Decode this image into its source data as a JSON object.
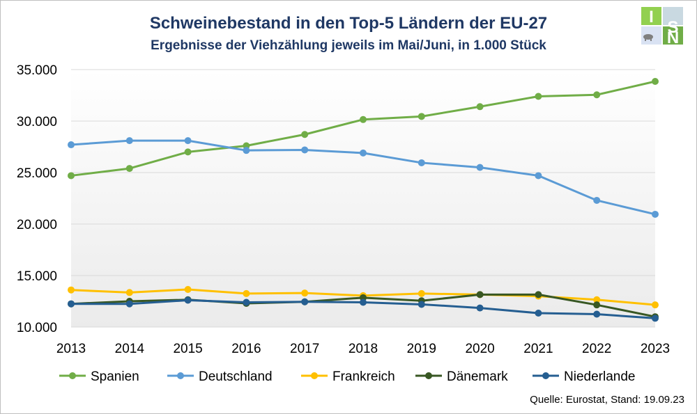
{
  "chart_data": {
    "type": "line",
    "title": "Schweinebestand in den Top-5 Ländern der EU-27",
    "subtitle": "Ergebnisse der Viehzählung jeweils im Mai/Juni, in 1.000 Stück",
    "x": [
      "2013",
      "2014",
      "2015",
      "2016",
      "2017",
      "2018",
      "2019",
      "2020",
      "2021",
      "2022",
      "2023"
    ],
    "ylim": [
      10000,
      35000
    ],
    "yticks": [
      10000,
      15000,
      20000,
      25000,
      30000,
      35000
    ],
    "ytick_labels": [
      "10.000",
      "15.000",
      "20.000",
      "25.000",
      "30.000",
      "35.000"
    ],
    "grid": "horizontal",
    "legend_position": "bottom",
    "series": [
      {
        "name": "Spanien",
        "color": "#70ad47",
        "values": [
          24700,
          25400,
          27000,
          27600,
          28700,
          30150,
          30450,
          31400,
          32400,
          32550,
          33850
        ]
      },
      {
        "name": "Deutschland",
        "color": "#5b9bd5",
        "values": [
          27700,
          28100,
          28100,
          27150,
          27200,
          26900,
          25950,
          25500,
          24700,
          22300,
          20950
        ]
      },
      {
        "name": "Frankreich",
        "color": "#ffc000",
        "values": [
          13600,
          13350,
          13650,
          13250,
          13300,
          13050,
          13250,
          13150,
          13000,
          12650,
          12150
        ]
      },
      {
        "name": "Dänemark",
        "color": "#385723",
        "values": [
          12250,
          12500,
          12650,
          12300,
          12450,
          12850,
          12550,
          13150,
          13150,
          12150,
          11000
        ]
      },
      {
        "name": "Niederlande",
        "color": "#255e91",
        "values": [
          12250,
          12250,
          12600,
          12400,
          12450,
          12400,
          12200,
          11850,
          11350,
          11250,
          10850
        ]
      }
    ]
  },
  "source": "Quelle: Eurostat, Stand: 19.09.23",
  "logo": {
    "letters": [
      "I",
      "S",
      "N"
    ],
    "colors": [
      "#92d050",
      "#8eaadb",
      "#70ad47"
    ]
  }
}
